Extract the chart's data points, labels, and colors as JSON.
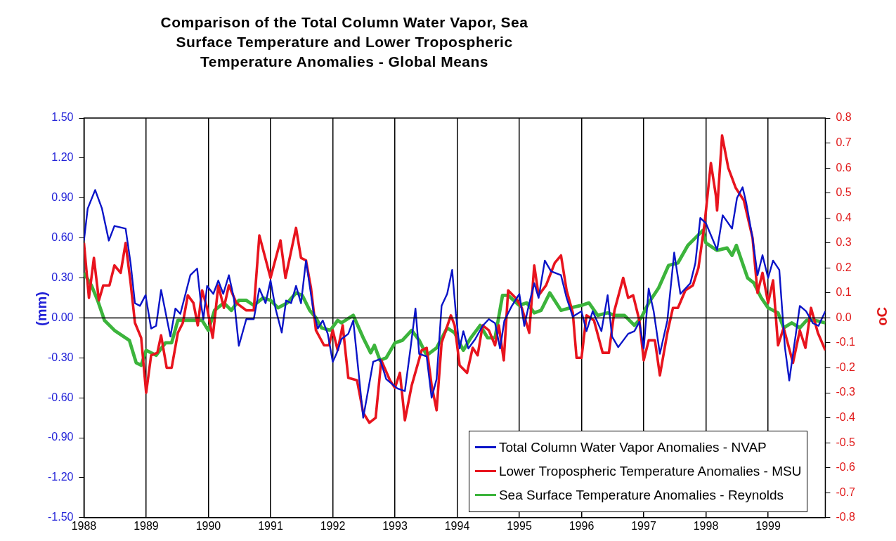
{
  "chart_data": {
    "type": "line",
    "title": "Comparison of the Total Column Water Vapor, Sea Surface Temperature and Lower Tropospheric Temperature Anomalies - Global Means",
    "ylabel": "(mm)",
    "y2label": "oC",
    "xlim": [
      1988,
      1999.92
    ],
    "xticks": [
      1988,
      1989,
      1990,
      1991,
      1992,
      1993,
      1994,
      1995,
      1996,
      1997,
      1998,
      1999
    ],
    "ylim": [
      -1.5,
      1.5
    ],
    "yticks": [
      {
        "value": -1.5,
        "label": "-1.50"
      },
      {
        "value": -1.2,
        "label": "-1.20"
      },
      {
        "value": -0.9,
        "label": "-0.90"
      },
      {
        "value": -0.6,
        "label": "-0.60"
      },
      {
        "value": -0.3,
        "label": "-0.30"
      },
      {
        "value": 0,
        "label": "0.00"
      },
      {
        "value": 0.3,
        "label": "0.30"
      },
      {
        "value": 0.6,
        "label": "0.60"
      },
      {
        "value": 0.9,
        "label": "0.90"
      },
      {
        "value": 1.2,
        "label": "1.20"
      },
      {
        "value": 1.5,
        "label": "1.50"
      }
    ],
    "y2lim": [
      -0.8,
      0.8
    ],
    "y2ticks": [
      -0.8,
      -0.7,
      -0.6,
      -0.5,
      -0.4,
      -0.3,
      -0.2,
      -0.1,
      {
        "value": 0,
        "label": "0.0"
      },
      0.1,
      0.2,
      0.3,
      0.4,
      0.5,
      0.6,
      0.7,
      0.8
    ],
    "grid": "x",
    "legend": "bottom right",
    "marker": "none",
    "ref_lines": [
      {
        "axis": "y",
        "value": 0,
        "color": "#000000"
      }
    ],
    "series": [
      {
        "name": "Total Column Water Vapor Anomalies - NVAP",
        "color": "#0a14c8",
        "x": [
          1988.0,
          1988.06,
          1988.18,
          1988.29,
          1988.4,
          1988.49,
          1988.67,
          1988.75,
          1988.82,
          1988.9,
          1988.99,
          1989.08,
          1989.16,
          1989.24,
          1989.39,
          1989.47,
          1989.55,
          1989.71,
          1989.82,
          1989.88,
          1989.92,
          1989.98,
          1990.08,
          1990.16,
          1990.24,
          1990.33,
          1990.41,
          1990.49,
          1990.61,
          1990.73,
          1990.82,
          1990.92,
          1991.0,
          1991.08,
          1991.18,
          1991.25,
          1991.33,
          1991.41,
          1991.49,
          1991.57,
          1991.69,
          1991.76,
          1991.84,
          1991.92,
          1992.0,
          1992.06,
          1992.14,
          1992.25,
          1992.33,
          1992.49,
          1992.65,
          1992.76,
          1992.86,
          1993.04,
          1993.16,
          1993.25,
          1993.33,
          1993.39,
          1993.51,
          1993.59,
          1993.67,
          1993.75,
          1993.84,
          1993.92,
          1993.98,
          1994.04,
          1994.1,
          1994.18,
          1994.29,
          1994.41,
          1994.51,
          1994.61,
          1994.69,
          1994.76,
          1994.88,
          1995.0,
          1995.08,
          1995.16,
          1995.24,
          1995.31,
          1995.41,
          1995.51,
          1995.67,
          1995.76,
          1995.86,
          1996.0,
          1996.08,
          1996.18,
          1996.32,
          1996.42,
          1996.49,
          1996.59,
          1996.75,
          1996.85,
          1996.93,
          1997.0,
          1997.08,
          1997.16,
          1997.26,
          1997.38,
          1997.49,
          1997.59,
          1997.75,
          1997.83,
          1997.91,
          1998.0,
          1998.18,
          1998.27,
          1998.42,
          1998.5,
          1998.59,
          1998.65,
          1998.75,
          1998.83,
          1998.91,
          1999.0,
          1999.08,
          1999.18,
          1999.27,
          1999.34,
          1999.51,
          1999.61,
          1999.72,
          1999.81,
          1999.92
        ],
        "values": [
          0.58,
          0.82,
          0.96,
          0.82,
          0.58,
          0.69,
          0.67,
          0.41,
          0.11,
          0.09,
          0.17,
          -0.08,
          -0.06,
          0.21,
          -0.14,
          0.07,
          0.03,
          0.32,
          0.37,
          0.11,
          -0.01,
          0.24,
          0.18,
          0.28,
          0.18,
          0.32,
          0.15,
          -0.21,
          -0.01,
          -0.01,
          0.22,
          0.11,
          0.28,
          0.07,
          -0.11,
          0.13,
          0.11,
          0.24,
          0.11,
          0.43,
          0.05,
          -0.08,
          -0.02,
          -0.12,
          -0.33,
          -0.27,
          -0.16,
          -0.12,
          -0.02,
          -0.75,
          -0.33,
          -0.31,
          -0.46,
          -0.53,
          -0.55,
          -0.23,
          0.07,
          -0.27,
          -0.29,
          -0.6,
          -0.46,
          0.09,
          0.18,
          0.36,
          0.03,
          -0.23,
          -0.1,
          -0.23,
          -0.16,
          -0.06,
          -0.01,
          -0.04,
          -0.23,
          -0.02,
          0.09,
          0.18,
          -0.06,
          0.11,
          0.26,
          0.15,
          0.43,
          0.35,
          0.32,
          0.15,
          0.01,
          0.05,
          -0.1,
          0.05,
          -0.1,
          0.17,
          -0.14,
          -0.22,
          -0.12,
          -0.1,
          -0.03,
          -0.23,
          0.22,
          0.05,
          -0.27,
          -0.02,
          0.49,
          0.18,
          0.26,
          0.41,
          0.75,
          0.71,
          0.51,
          0.77,
          0.67,
          0.9,
          0.98,
          0.86,
          0.6,
          0.32,
          0.47,
          0.3,
          0.43,
          0.36,
          -0.22,
          -0.47,
          0.09,
          0.05,
          -0.04,
          -0.06,
          0.05
        ]
      },
      {
        "name": "Lower Tropospheric Temperature Anomalies - MSU",
        "color": "#e8141e",
        "axis": "y2",
        "x": [
          1988.0,
          1988.08,
          1988.16,
          1988.24,
          1988.31,
          1988.41,
          1988.49,
          1988.59,
          1988.67,
          1988.75,
          1988.82,
          1988.92,
          1989.0,
          1989.08,
          1989.18,
          1989.24,
          1989.33,
          1989.41,
          1989.51,
          1989.59,
          1989.67,
          1989.76,
          1989.83,
          1989.9,
          1989.98,
          1990.07,
          1990.16,
          1990.25,
          1990.33,
          1990.45,
          1990.61,
          1990.73,
          1990.82,
          1991.0,
          1991.16,
          1991.24,
          1991.41,
          1991.49,
          1991.57,
          1991.65,
          1991.73,
          1991.86,
          1991.94,
          1992.0,
          1992.08,
          1992.16,
          1992.25,
          1992.39,
          1992.49,
          1992.59,
          1992.69,
          1992.78,
          1992.92,
          1993.0,
          1993.08,
          1993.16,
          1993.27,
          1993.43,
          1993.51,
          1993.59,
          1993.67,
          1993.75,
          1993.9,
          1993.96,
          1994.04,
          1994.16,
          1994.25,
          1994.33,
          1994.41,
          1994.51,
          1994.61,
          1994.67,
          1994.75,
          1994.82,
          1994.94,
          1995.04,
          1995.16,
          1995.24,
          1995.31,
          1995.43,
          1995.57,
          1995.67,
          1995.76,
          1995.86,
          1995.92,
          1996.0,
          1996.08,
          1996.2,
          1996.34,
          1996.44,
          1996.53,
          1996.67,
          1996.75,
          1996.83,
          1996.93,
          1997.0,
          1997.08,
          1997.18,
          1997.26,
          1997.38,
          1997.47,
          1997.55,
          1997.67,
          1997.79,
          1997.88,
          1997.98,
          1998.08,
          1998.16,
          1998.18,
          1998.26,
          1998.36,
          1998.48,
          1998.61,
          1998.75,
          1998.83,
          1998.91,
          1999.0,
          1999.08,
          1999.16,
          1999.25,
          1999.4,
          1999.51,
          1999.6,
          1999.69,
          1999.8,
          1999.92
        ],
        "values": [
          0.3,
          0.08,
          0.24,
          0.07,
          0.13,
          0.13,
          0.21,
          0.18,
          0.3,
          0.14,
          -0.02,
          -0.08,
          -0.3,
          -0.15,
          -0.14,
          -0.07,
          -0.2,
          -0.2,
          -0.06,
          -0.02,
          0.09,
          0.06,
          -0.03,
          0.11,
          0.04,
          -0.08,
          0.13,
          0.04,
          0.13,
          0.06,
          0.03,
          0.03,
          0.33,
          0.16,
          0.31,
          0.16,
          0.36,
          0.24,
          0.23,
          0.12,
          -0.05,
          -0.11,
          -0.11,
          -0.05,
          -0.13,
          -0.03,
          -0.24,
          -0.25,
          -0.38,
          -0.42,
          -0.4,
          -0.17,
          -0.25,
          -0.28,
          -0.22,
          -0.41,
          -0.27,
          -0.13,
          -0.12,
          -0.27,
          -0.37,
          -0.1,
          0.01,
          -0.03,
          -0.19,
          -0.22,
          -0.12,
          -0.15,
          -0.03,
          -0.05,
          -0.11,
          -0.03,
          -0.17,
          0.11,
          0.08,
          0.04,
          -0.06,
          0.21,
          0.09,
          0.13,
          0.22,
          0.25,
          0.11,
          0.02,
          -0.16,
          -0.16,
          0.01,
          -0.01,
          -0.14,
          -0.14,
          0.03,
          0.16,
          0.08,
          0.09,
          -0.01,
          -0.17,
          -0.09,
          -0.09,
          -0.23,
          -0.06,
          0.04,
          0.04,
          0.11,
          0.13,
          0.2,
          0.38,
          0.62,
          0.49,
          0.43,
          0.73,
          0.6,
          0.52,
          0.47,
          0.32,
          0.1,
          0.18,
          0.06,
          0.15,
          -0.11,
          -0.04,
          -0.18,
          -0.05,
          -0.12,
          0.04,
          -0.06,
          -0.13
        ]
      },
      {
        "name": "Sea Surface Temperature Anomalies - Reynolds",
        "color": "#3cb43c",
        "axis": "y2",
        "x": [
          1988.0,
          1988.12,
          1988.22,
          1988.33,
          1988.49,
          1988.73,
          1988.84,
          1988.92,
          1989.0,
          1989.16,
          1989.31,
          1989.41,
          1989.51,
          1989.78,
          1989.9,
          1990.0,
          1990.1,
          1990.25,
          1990.37,
          1990.49,
          1990.61,
          1990.73,
          1990.88,
          1991.0,
          1991.12,
          1991.27,
          1991.41,
          1991.51,
          1991.63,
          1991.73,
          1991.82,
          1991.96,
          1992.08,
          1992.14,
          1992.33,
          1992.49,
          1992.61,
          1992.67,
          1992.76,
          1992.86,
          1993.0,
          1993.12,
          1993.27,
          1993.39,
          1993.51,
          1993.67,
          1993.84,
          1993.96,
          1994.1,
          1994.22,
          1994.37,
          1994.49,
          1994.61,
          1994.73,
          1994.82,
          1995.0,
          1995.12,
          1995.24,
          1995.35,
          1995.49,
          1995.67,
          1995.82,
          1996.0,
          1996.12,
          1996.26,
          1996.42,
          1996.53,
          1996.69,
          1996.85,
          1996.96,
          1997.08,
          1997.24,
          1997.4,
          1997.55,
          1997.71,
          1997.87,
          1997.95,
          1998.0,
          1998.18,
          1998.34,
          1998.42,
          1998.49,
          1998.67,
          1998.77,
          1998.89,
          1999.0,
          1999.16,
          1999.25,
          1999.38,
          1999.51,
          1999.62,
          1999.75,
          1999.92
        ],
        "values": [
          0.18,
          0.13,
          0.07,
          -0.01,
          -0.05,
          -0.09,
          -0.18,
          -0.19,
          -0.13,
          -0.15,
          -0.1,
          -0.1,
          -0.01,
          -0.01,
          -0.01,
          -0.05,
          0.03,
          0.06,
          0.03,
          0.07,
          0.07,
          0.05,
          0.08,
          0.07,
          0.04,
          0.06,
          0.1,
          0.09,
          0.03,
          0,
          -0.04,
          -0.05,
          -0.01,
          -0.02,
          0.01,
          -0.08,
          -0.14,
          -0.11,
          -0.17,
          -0.16,
          -0.1,
          -0.09,
          -0.05,
          -0.09,
          -0.15,
          -0.12,
          -0.04,
          -0.06,
          -0.13,
          -0.08,
          -0.03,
          -0.08,
          -0.08,
          0.09,
          0.09,
          0.05,
          0.06,
          0.02,
          0.03,
          0.1,
          0.03,
          0.04,
          0.05,
          0.06,
          0.01,
          0.02,
          0.01,
          0.01,
          -0.03,
          0,
          0.06,
          0.12,
          0.21,
          0.22,
          0.29,
          0.33,
          0.35,
          0.3,
          0.27,
          0.28,
          0.25,
          0.29,
          0.16,
          0.14,
          0.08,
          0.04,
          0.02,
          -0.04,
          -0.02,
          -0.04,
          -0.01,
          -0.01,
          -0.02
        ]
      }
    ]
  }
}
